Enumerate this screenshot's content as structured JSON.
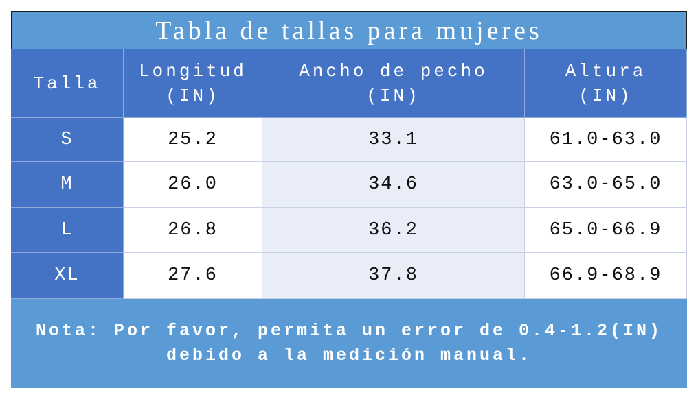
{
  "title": "Tabla de tallas para mujeres",
  "table": {
    "header": [
      [
        "Talla"
      ],
      [
        "Longitud",
        "(IN)"
      ],
      [
        "Ancho de pecho",
        "(IN)"
      ],
      [
        "Altura",
        "(IN)"
      ]
    ],
    "rows": [
      [
        "S",
        "25.2",
        "33.1",
        "61.0-63.0"
      ],
      [
        "M",
        "26.0",
        "34.6",
        "63.0-65.0"
      ],
      [
        "L",
        "26.8",
        "36.2",
        "65.0-66.9"
      ],
      [
        "XL",
        "27.6",
        "37.8",
        "66.9-68.9"
      ]
    ]
  },
  "note": [
    "Nota: Por favor, permita un error de 0.4-1.2(IN)",
    "debido a la medición manual."
  ]
}
